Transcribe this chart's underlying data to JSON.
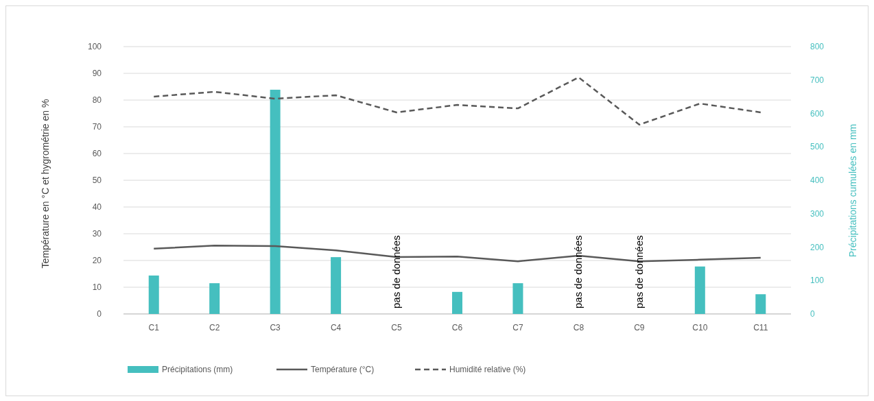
{
  "chart_data": {
    "type": "bar",
    "ylabel": "Température en °C et hygrométrie en  %",
    "y2label": "Précipitations  cumulées en mm",
    "categories": [
      "C1",
      "C2",
      "C3",
      "C4",
      "C5",
      "C6",
      "C7",
      "C8",
      "C9",
      "C10",
      "C11"
    ],
    "series": [
      {
        "name": "Précipitations (mm)",
        "axis": "y2",
        "color": "#45bfbf",
        "values": [
          115,
          92,
          671,
          170,
          null,
          66,
          92,
          null,
          null,
          142,
          59
        ]
      },
      {
        "name": "Température (°C)",
        "type": "line",
        "color": "#595959",
        "line_style": "solid",
        "values": [
          24.4,
          25.6,
          25.4,
          23.8,
          21.3,
          21.5,
          19.7,
          21.8,
          19.7,
          20.3,
          21.0
        ]
      },
      {
        "name": "Humidité relative (%)",
        "type": "line",
        "color": "#595959",
        "line_style": "dashed",
        "values": [
          81.3,
          83.1,
          80.5,
          81.8,
          75.4,
          78.2,
          76.9,
          88.5,
          70.8,
          78.7,
          75.4
        ]
      }
    ],
    "ylim": [
      0,
      100
    ],
    "yticks": [
      0,
      10,
      20,
      30,
      40,
      50,
      60,
      70,
      80,
      90,
      100
    ],
    "y2lim": [
      0,
      800
    ],
    "y2ticks": [
      0,
      100,
      200,
      300,
      400,
      500,
      600,
      700,
      800
    ],
    "grid": "y",
    "legend": "bottom",
    "annotations": [
      "pas de données",
      "pas de données",
      "pas de données"
    ]
  }
}
